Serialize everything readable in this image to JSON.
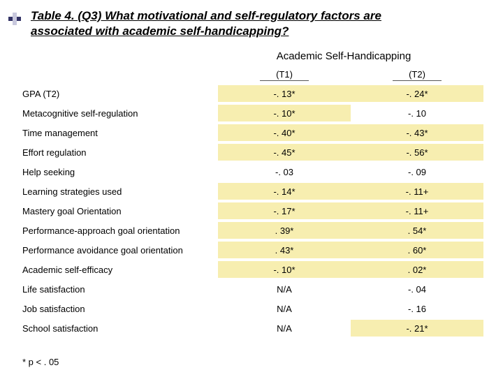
{
  "title_line1": "Table 4. (Q3) What motivational and self-regulatory factors are",
  "title_line2": "associated with academic self-handicapping?",
  "super_header": "Academic Self-Handicapping",
  "col_headers": {
    "t1": "(T1)",
    "t2": "(T2)"
  },
  "footnote": "* p < . 05",
  "colors": {
    "highlight": "#f7eeb0",
    "bullet_dark": "#333366",
    "bullet_light": "#c8c8dd"
  },
  "rows": [
    {
      "label": "GPA (T2)",
      "t1": "-. 13*",
      "hl_t1": true,
      "t2": "-. 24*",
      "hl_t2": true
    },
    {
      "label": "Metacognitive self-regulation",
      "t1": "-. 10*",
      "hl_t1": true,
      "t2": "-. 10",
      "hl_t2": false
    },
    {
      "label": "Time management",
      "t1": "-. 40*",
      "hl_t1": true,
      "t2": "-. 43*",
      "hl_t2": true
    },
    {
      "label": "Effort regulation",
      "t1": "-. 45*",
      "hl_t1": true,
      "t2": "-. 56*",
      "hl_t2": true
    },
    {
      "label": "Help seeking",
      "t1": "-. 03",
      "hl_t1": false,
      "t2": "-. 09",
      "hl_t2": false
    },
    {
      "label": "Learning strategies used",
      "t1": "-. 14*",
      "hl_t1": true,
      "t2": "-. 11+",
      "hl_t2": true
    },
    {
      "label": "Mastery goal Orientation",
      "t1": "-. 17*",
      "hl_t1": true,
      "t2": "-. 11+",
      "hl_t2": true
    },
    {
      "label": "Performance-approach goal orientation",
      "t1": ". 39*",
      "hl_t1": true,
      "t2": ". 54*",
      "hl_t2": true
    },
    {
      "label": "Performance avoidance goal orientation",
      "t1": ". 43*",
      "hl_t1": true,
      "t2": ". 60*",
      "hl_t2": true
    },
    {
      "label": "Academic self-efficacy",
      "t1": "-. 10*",
      "hl_t1": true,
      "t2": ". 02*",
      "hl_t2": true
    },
    {
      "label": "Life satisfaction",
      "t1": "N/A",
      "hl_t1": false,
      "t2": "-. 04",
      "hl_t2": false
    },
    {
      "label": "Job satisfaction",
      "t1": "N/A",
      "hl_t1": false,
      "t2": "-. 16",
      "hl_t2": false
    },
    {
      "label": "School satisfaction",
      "t1": "N/A",
      "hl_t1": false,
      "t2": "-. 21*",
      "hl_t2": true
    }
  ]
}
